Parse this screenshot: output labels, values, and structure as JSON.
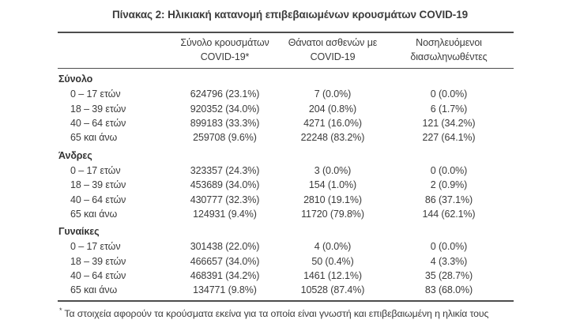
{
  "title": "Πίνακας 2: Ηλικιακή κατανομή επιβεβαιωμένων κρουσμάτων COVID-19",
  "table": {
    "columns": [
      {
        "line1": "Σύνολο κρουσμάτων",
        "line2": "COVID-19*"
      },
      {
        "line1": "Θάνατοι ασθενών με",
        "line2": "COVID-19"
      },
      {
        "line1": "Νοσηλευόμενοι",
        "line2": "διασωληνωθέντες"
      }
    ],
    "sections": [
      {
        "label": "Σύνολο",
        "rows": [
          {
            "age": "0 – 17 ετών",
            "cases": "624796 (23.1%)",
            "deaths": "7 (0.0%)",
            "intubated": "0 (0.0%)"
          },
          {
            "age": "18 – 39 ετών",
            "cases": "920352 (34.0%)",
            "deaths": "204 (0.8%)",
            "intubated": "6 (1.7%)"
          },
          {
            "age": "40 – 64 ετών",
            "cases": "899183 (33.3%)",
            "deaths": "4271 (16.0%)",
            "intubated": "121 (34.2%)"
          },
          {
            "age": "65 και άνω",
            "cases": "259708 (9.6%)",
            "deaths": "22248 (83.2%)",
            "intubated": "227 (64.1%)"
          }
        ]
      },
      {
        "label": "Άνδρες",
        "rows": [
          {
            "age": "0 – 17 ετών",
            "cases": "323357 (24.3%)",
            "deaths": "3 (0.0%)",
            "intubated": "0 (0.0%)"
          },
          {
            "age": "18 – 39 ετών",
            "cases": "453689 (34.0%)",
            "deaths": "154 (1.0%)",
            "intubated": "2 (0.9%)"
          },
          {
            "age": "40 – 64 ετών",
            "cases": "430777 (32.3%)",
            "deaths": "2810 (19.1%)",
            "intubated": "86 (37.1%)"
          },
          {
            "age": "65 και άνω",
            "cases": "124931 (9.4%)",
            "deaths": "11720 (79.8%)",
            "intubated": "144 (62.1%)"
          }
        ]
      },
      {
        "label": "Γυναίκες",
        "rows": [
          {
            "age": "0 – 17 ετών",
            "cases": "301438 (22.0%)",
            "deaths": "4 (0.0%)",
            "intubated": "0 (0.0%)"
          },
          {
            "age": "18 – 39 ετών",
            "cases": "466657 (34.0%)",
            "deaths": "50 (0.4%)",
            "intubated": "4 (3.3%)"
          },
          {
            "age": "40 – 64 ετών",
            "cases": "468391 (34.2%)",
            "deaths": "1461 (12.1%)",
            "intubated": "35 (28.7%)"
          },
          {
            "age": "65 και άνω",
            "cases": "134771 (9.8%)",
            "deaths": "10528 (87.4%)",
            "intubated": "83 (68.0%)"
          }
        ]
      }
    ]
  },
  "footnote": {
    "marker": "*",
    "text": "Τα στοιχεία αφορούν τα κρούσματα εκείνα για τα οποία είναι γνωστή και επιβεβαιωμένη η ηλικία τους"
  }
}
